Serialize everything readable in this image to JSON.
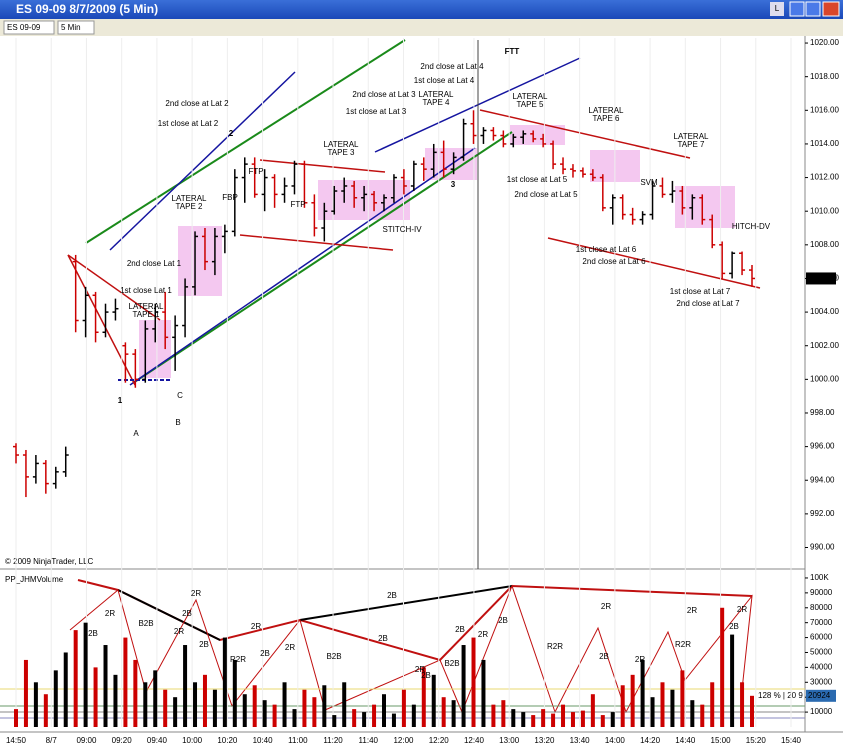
{
  "window": {
    "title": "ES 09-09  8/7/2009 (5 Min)",
    "button": "L"
  },
  "toolbar": {
    "instrument": "ES 09-09",
    "interval": "5 Min"
  },
  "price_panel": {
    "type": "ohlc",
    "up_color": "#000000",
    "down_color": "#cc0000",
    "ylim": [
      988.9,
      1020.3
    ],
    "yticks": [
      {
        "value": 990,
        "label": "990.00"
      },
      {
        "value": 992,
        "label": "992.00"
      },
      {
        "value": 994,
        "label": "994.00"
      },
      {
        "value": 996,
        "label": "996.00"
      },
      {
        "value": 998,
        "label": "998.00"
      },
      {
        "value": 1000,
        "label": "1000.00"
      },
      {
        "value": 1002,
        "label": "1002.00"
      },
      {
        "value": 1004,
        "label": "1004.00"
      },
      {
        "value": 1006,
        "label": "1006.00"
      },
      {
        "value": 1008,
        "label": "1008.00"
      },
      {
        "value": 1010,
        "label": "1010.00"
      },
      {
        "value": 1012,
        "label": "1012.00"
      },
      {
        "value": 1014,
        "label": "1014.00"
      },
      {
        "value": 1016,
        "label": "1016.00"
      },
      {
        "value": 1018,
        "label": "1018.00"
      },
      {
        "value": 1020,
        "label": "1020.00"
      }
    ],
    "last_price": {
      "value": 1006,
      "label": "1006.00"
    },
    "copyright": "© 2009 NinjaTrader, LLC",
    "bars": [
      [
        996,
        996.2,
        995,
        995.5
      ],
      [
        995.5,
        995.8,
        993,
        994.2
      ],
      [
        994.2,
        995.5,
        993.8,
        995
      ],
      [
        995,
        995.2,
        993.2,
        993.8
      ],
      [
        993.8,
        994.8,
        993.5,
        994.5
      ],
      [
        994.5,
        996,
        994.2,
        995.5
      ],
      [
        1007,
        1007.4,
        1002.8,
        1003.5
      ],
      [
        1003.5,
        1005.5,
        1002.5,
        1005
      ],
      [
        1005,
        1005.2,
        1002.2,
        1002.8
      ],
      [
        1002.8,
        1004.5,
        1002.5,
        1004
      ],
      [
        1004,
        1004.8,
        1003.5,
        1004.2
      ],
      [
        1002,
        1002.2,
        999.8,
        1001.5
      ],
      [
        1001.5,
        1001.8,
        999.5,
        1000
      ],
      [
        1000,
        1003.5,
        999.8,
        1003
      ],
      [
        1003,
        1004.5,
        1002.2,
        1004
      ],
      [
        1004,
        1005.2,
        1001.8,
        1002.5
      ],
      [
        1002.5,
        1003.8,
        1000.5,
        1003.2
      ],
      [
        1003.2,
        1006,
        1002.5,
        1005.5
      ],
      [
        1005.5,
        1008.8,
        1005,
        1008.5
      ],
      [
        1008.5,
        1009,
        1006.5,
        1007
      ],
      [
        1007,
        1009,
        1006.2,
        1008.5
      ],
      [
        1008.5,
        1009.2,
        1007.5,
        1008.8
      ],
      [
        1008.8,
        1012.5,
        1008.5,
        1012
      ],
      [
        1012,
        1013.2,
        1010.5,
        1012.8
      ],
      [
        1012.8,
        1013.2,
        1010.8,
        1011
      ],
      [
        1011,
        1012.5,
        1010,
        1012
      ],
      [
        1012,
        1012.2,
        1010.2,
        1011
      ],
      [
        1011,
        1012,
        1010.5,
        1011.5
      ],
      [
        1011.5,
        1013,
        1011,
        1012.8
      ],
      [
        1012.8,
        1013,
        1010.2,
        1010.5
      ],
      [
        1010.5,
        1011,
        1008.5,
        1009
      ],
      [
        1009,
        1010.5,
        1008.2,
        1010
      ],
      [
        1010,
        1011.5,
        1009.8,
        1011.2
      ],
      [
        1011.2,
        1012,
        1010.5,
        1011.5
      ],
      [
        1011.5,
        1011.8,
        1010.2,
        1010.8
      ],
      [
        1010.8,
        1011.5,
        1010,
        1011
      ],
      [
        1011,
        1011.2,
        1010,
        1010.5
      ],
      [
        1010.5,
        1011,
        1010,
        1010.8
      ],
      [
        1010.8,
        1012.2,
        1010.5,
        1012
      ],
      [
        1012,
        1012.5,
        1011,
        1011.5
      ],
      [
        1011.5,
        1013,
        1011.2,
        1012.8
      ],
      [
        1012.8,
        1013.2,
        1011.8,
        1012.5
      ],
      [
        1012.5,
        1014,
        1012,
        1013.5
      ],
      [
        1013.5,
        1014.2,
        1012,
        1012.5
      ],
      [
        1012.5,
        1013.5,
        1012.2,
        1013.2
      ],
      [
        1013.2,
        1015.5,
        1013,
        1015.2
      ],
      [
        1015.2,
        1016,
        1014,
        1014.5
      ],
      [
        1014.5,
        1015,
        1014,
        1014.8
      ],
      [
        1014.8,
        1015,
        1014.2,
        1014.5
      ],
      [
        1014.5,
        1014.8,
        1013.8,
        1014
      ],
      [
        1014,
        1014.6,
        1013.8,
        1014.4
      ],
      [
        1014.4,
        1014.8,
        1014,
        1014.6
      ],
      [
        1014.6,
        1014.8,
        1014.1,
        1014.3
      ],
      [
        1014.3,
        1014.6,
        1013.8,
        1014
      ],
      [
        1014,
        1014.2,
        1012.5,
        1012.8
      ],
      [
        1012.8,
        1013.2,
        1012.2,
        1012.5
      ],
      [
        1012.5,
        1012.8,
        1012,
        1012.4
      ],
      [
        1012.4,
        1012.6,
        1012,
        1012.2
      ],
      [
        1012.2,
        1012.5,
        1011.8,
        1012
      ],
      [
        1012,
        1012.2,
        1010,
        1010.2
      ],
      [
        1010.2,
        1011,
        1009.2,
        1010.8
      ],
      [
        1010.8,
        1011,
        1009.5,
        1009.8
      ],
      [
        1009.8,
        1010.2,
        1009.2,
        1009.5
      ],
      [
        1009.5,
        1010,
        1009.2,
        1009.8
      ],
      [
        1009.8,
        1011.8,
        1009.5,
        1011.5
      ],
      [
        1011.5,
        1012,
        1010.8,
        1011
      ],
      [
        1011,
        1011.8,
        1010.5,
        1011.2
      ],
      [
        1011.2,
        1011.5,
        1009.8,
        1010.2
      ],
      [
        1010.2,
        1011,
        1009.5,
        1010.8
      ],
      [
        1010.8,
        1011,
        1009.2,
        1009.5
      ],
      [
        1009.5,
        1009.8,
        1007.8,
        1008
      ],
      [
        1008,
        1008.2,
        1006,
        1006.3
      ],
      [
        1006.3,
        1007.6,
        1006,
        1007.5
      ],
      [
        1007.5,
        1007.6,
        1006.2,
        1006.5
      ],
      [
        1006.5,
        1006.8,
        1005.5,
        1006
      ]
    ],
    "annotations": [
      "FTT",
      "2nd close at Lat 4",
      "1st close at Lat 4",
      "2nd close at Lat 2",
      "1st close at Lat 2",
      "2",
      "2nd close at Lat 3",
      "1st close at Lat 3",
      [
        "LATERAL",
        "TAPE 4"
      ],
      [
        "LATERAL",
        "TAPE 5"
      ],
      [
        "LATERAL",
        "TAPE 6"
      ],
      [
        "LATERAL",
        "TAPE 7"
      ],
      [
        "LATERAL",
        "TAPE 3"
      ],
      [
        "LATERAL",
        "TAPE 2"
      ],
      [
        "LATERAL",
        "TAPE 1"
      ],
      "FTP",
      "FBP",
      "FTP",
      "STITCH-IV",
      "3",
      "1st close at Lat 5",
      "2nd close at Lat 5",
      "SVM",
      "1st close at Lat 6",
      "2nd close at Lat 6",
      "HITCH-DV",
      "1st close at Lat 7",
      "2nd close at Lat 7",
      "2nd close Lat 1",
      "1st close Lat 1",
      "1",
      "A",
      "B",
      "C"
    ]
  },
  "volume_panel": {
    "type": "bar",
    "title": "PP_JHMVolume",
    "ylim": [
      0,
      104000
    ],
    "yticks": [
      10000,
      20000,
      30000,
      40000,
      50000,
      60000,
      70000,
      80000,
      90000,
      {
        "value": 100000,
        "label": "100K"
      }
    ],
    "status": "128 % | 20 9",
    "values": [
      12000,
      45000,
      30000,
      22000,
      38000,
      50000,
      65000,
      70000,
      40000,
      55000,
      35000,
      60000,
      45000,
      30000,
      38000,
      25000,
      20000,
      55000,
      30000,
      35000,
      25000,
      60000,
      45000,
      22000,
      28000,
      18000,
      15000,
      30000,
      12000,
      25000,
      20000,
      28000,
      8000,
      30000,
      12000,
      10000,
      15000,
      22000,
      9000,
      25000,
      15000,
      40000,
      35000,
      20000,
      18000,
      55000,
      60000,
      45000,
      15000,
      18000,
      12000,
      10000,
      8000,
      12000,
      9000,
      15000,
      10000,
      11000,
      22000,
      8000,
      10000,
      28000,
      35000,
      45000,
      20000,
      30000,
      25000,
      38000,
      18000,
      15000,
      30000,
      80000,
      62000,
      30000,
      20924
    ],
    "wave_labels": [
      "2R",
      "2B",
      "B2B",
      "2B",
      "2R",
      "2R",
      "2B",
      "R2R",
      "2R",
      "2B",
      "2R",
      "B2B",
      "2B",
      "2B",
      "2B",
      "2R",
      "2B",
      "B2B",
      "2B",
      "2R",
      "R2R",
      "2R",
      "2B",
      "2R",
      "R2R",
      "2R",
      "2B",
      "2R"
    ]
  },
  "time_axis": {
    "labels": [
      "14:50",
      "8/7",
      "09:00",
      "09:20",
      "09:40",
      "10:00",
      "10:20",
      "10:40",
      "11:00",
      "11:20",
      "11:40",
      "12:00",
      "12:20",
      "12:40",
      "13:00",
      "13:20",
      "13:40",
      "14:00",
      "14:20",
      "14:40",
      "15:00",
      "15:20",
      "15:40"
    ]
  }
}
